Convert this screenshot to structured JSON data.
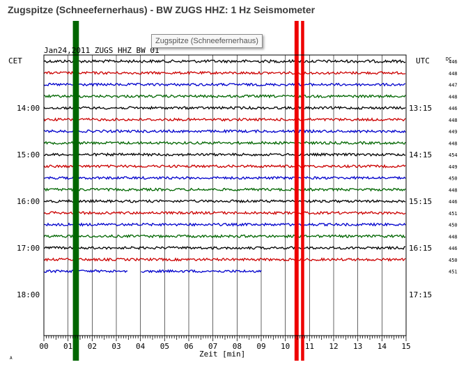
{
  "title": "Zugspitze (Schneefernerhaus) - BW ZUGS HHZ: 1 Hz Seismometer",
  "tooltip": "Zugspitze (Schneefernerhaus)",
  "chart_data": {
    "type": "line",
    "header": "Jan24,2011   ZUGS HHZ BW 01",
    "left_axis_label": "CET",
    "right_axis_label": "UTC",
    "dc_label": "DC",
    "xlabel": "Zeit [min]",
    "xlim": [
      0,
      15
    ],
    "x_ticks": [
      "00",
      "01",
      "02",
      "03",
      "04",
      "05",
      "06",
      "07",
      "08",
      "09",
      "10",
      "11",
      "12",
      "13",
      "14",
      "15"
    ],
    "cet_ticks": [
      "14:00",
      "15:00",
      "16:00",
      "17:00",
      "18:00"
    ],
    "utc_ticks": [
      "13:15",
      "14:15",
      "15:15",
      "16:15",
      "17:15"
    ],
    "dc_values": [
      "446",
      "448",
      "447",
      "448",
      "446",
      "448",
      "449",
      "448",
      "454",
      "449",
      "450",
      "448",
      "446",
      "451",
      "450",
      "448",
      "446",
      "450",
      "451"
    ],
    "trace_colors": [
      "#000000",
      "#cc0000",
      "#0000cc",
      "#006600"
    ],
    "traces": [
      {
        "row": 0,
        "end_min": 15,
        "highlight": true
      },
      {
        "row": 1,
        "end_min": 15
      },
      {
        "row": 2,
        "end_min": 15
      },
      {
        "row": 3,
        "end_min": 15
      },
      {
        "row": 4,
        "end_min": 15
      },
      {
        "row": 5,
        "end_min": 15
      },
      {
        "row": 6,
        "end_min": 15
      },
      {
        "row": 7,
        "end_min": 15
      },
      {
        "row": 8,
        "end_min": 15
      },
      {
        "row": 9,
        "end_min": 15
      },
      {
        "row": 10,
        "end_min": 15
      },
      {
        "row": 11,
        "end_min": 15
      },
      {
        "row": 12,
        "end_min": 15
      },
      {
        "row": 13,
        "end_min": 15
      },
      {
        "row": 14,
        "end_min": 15
      },
      {
        "row": 15,
        "end_min": 15
      },
      {
        "row": 16,
        "end_min": 15
      },
      {
        "row": 17,
        "end_min": 15
      },
      {
        "row": 18,
        "end_min": 9.0,
        "gaps": [
          [
            3.5,
            4.0
          ]
        ]
      }
    ],
    "events": [
      {
        "color": "#006600",
        "start_min": 1.2,
        "end_min": 1.45
      },
      {
        "color": "#ee0000",
        "start_min": 10.38,
        "end_min": 10.55
      },
      {
        "color": "#ee0000",
        "start_min": 10.65,
        "end_min": 10.78
      }
    ],
    "footnote": "A"
  }
}
